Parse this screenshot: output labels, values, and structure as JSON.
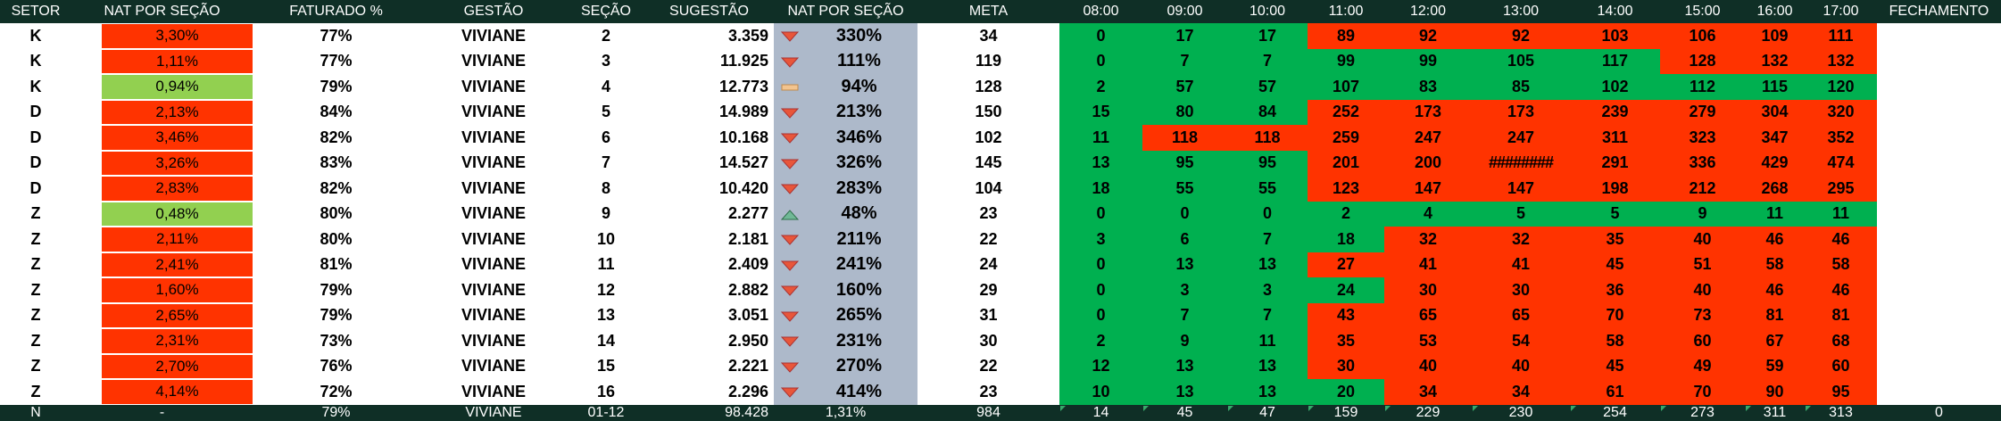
{
  "headers": [
    "SETOR",
    "NAT POR SEÇÃO",
    "FATURADO %",
    "GESTÃO",
    "SEÇÃO",
    "SUGESTÃO",
    "NAT POR SEÇÃO",
    "META",
    "08:00",
    "09:00",
    "10:00",
    "11:00",
    "12:00",
    "13:00",
    "14:00",
    "15:00",
    "16:00",
    "17:00",
    "FECHAMENTO"
  ],
  "colors": {
    "header_bg": "#0f2f26",
    "red": "#ff3300",
    "green": "#00b050",
    "light_green": "#92d050",
    "blue_gray": "#adb9ca",
    "icon_down": "#e8563a",
    "icon_up": "#70b896",
    "icon_flat": "#f2c48f"
  },
  "rows": [
    {
      "setor": "K",
      "nat": "3,30%",
      "nat_color": "red",
      "fat": "77%",
      "gestao": "VIVIANE",
      "secao": "2",
      "sug": "3.359",
      "icon": "down",
      "pct": "330%",
      "meta": "34",
      "hours": [
        "0",
        "17",
        "17",
        "89",
        "92",
        "92",
        "103",
        "106",
        "109",
        "111"
      ],
      "hcolors": [
        "g",
        "g",
        "g",
        "r",
        "r",
        "r",
        "r",
        "r",
        "r",
        "r"
      ]
    },
    {
      "setor": "K",
      "nat": "1,11%",
      "nat_color": "red",
      "fat": "77%",
      "gestao": "VIVIANE",
      "secao": "3",
      "sug": "11.925",
      "icon": "down",
      "pct": "111%",
      "meta": "119",
      "hours": [
        "0",
        "7",
        "7",
        "99",
        "99",
        "105",
        "117",
        "128",
        "132",
        "132"
      ],
      "hcolors": [
        "g",
        "g",
        "g",
        "g",
        "g",
        "g",
        "g",
        "r",
        "r",
        "r"
      ]
    },
    {
      "setor": "K",
      "nat": "0,94%",
      "nat_color": "lgn",
      "fat": "79%",
      "gestao": "VIVIANE",
      "secao": "4",
      "sug": "12.773",
      "icon": "flat",
      "pct": "94%",
      "meta": "128",
      "hours": [
        "2",
        "57",
        "57",
        "107",
        "83",
        "85",
        "102",
        "112",
        "115",
        "120"
      ],
      "hcolors": [
        "g",
        "g",
        "g",
        "g",
        "g",
        "g",
        "g",
        "g",
        "g",
        "g"
      ]
    },
    {
      "setor": "D",
      "nat": "2,13%",
      "nat_color": "red",
      "fat": "84%",
      "gestao": "VIVIANE",
      "secao": "5",
      "sug": "14.989",
      "icon": "down",
      "pct": "213%",
      "meta": "150",
      "hours": [
        "15",
        "80",
        "84",
        "252",
        "173",
        "173",
        "239",
        "279",
        "304",
        "320"
      ],
      "hcolors": [
        "g",
        "g",
        "g",
        "r",
        "r",
        "r",
        "r",
        "r",
        "r",
        "r"
      ]
    },
    {
      "setor": "D",
      "nat": "3,46%",
      "nat_color": "red",
      "fat": "82%",
      "gestao": "VIVIANE",
      "secao": "6",
      "sug": "10.168",
      "icon": "down",
      "pct": "346%",
      "meta": "102",
      "hours": [
        "11",
        "118",
        "118",
        "259",
        "247",
        "247",
        "311",
        "323",
        "347",
        "352"
      ],
      "hcolors": [
        "g",
        "r",
        "r",
        "r",
        "r",
        "r",
        "r",
        "r",
        "r",
        "r"
      ]
    },
    {
      "setor": "D",
      "nat": "3,26%",
      "nat_color": "red",
      "fat": "83%",
      "gestao": "VIVIANE",
      "secao": "7",
      "sug": "14.527",
      "icon": "down",
      "pct": "326%",
      "meta": "145",
      "hours": [
        "13",
        "95",
        "95",
        "201",
        "200",
        "########",
        "291",
        "336",
        "429",
        "474"
      ],
      "hcolors": [
        "g",
        "g",
        "g",
        "r",
        "r",
        "r",
        "r",
        "r",
        "r",
        "r"
      ]
    },
    {
      "setor": "D",
      "nat": "2,83%",
      "nat_color": "red",
      "fat": "82%",
      "gestao": "VIVIANE",
      "secao": "8",
      "sug": "10.420",
      "icon": "down",
      "pct": "283%",
      "meta": "104",
      "hours": [
        "18",
        "55",
        "55",
        "123",
        "147",
        "147",
        "198",
        "212",
        "268",
        "295"
      ],
      "hcolors": [
        "g",
        "g",
        "g",
        "r",
        "r",
        "r",
        "r",
        "r",
        "r",
        "r"
      ]
    },
    {
      "setor": "Z",
      "nat": "0,48%",
      "nat_color": "lgn",
      "fat": "80%",
      "gestao": "VIVIANE",
      "secao": "9",
      "sug": "2.277",
      "icon": "up",
      "pct": "48%",
      "meta": "23",
      "hours": [
        "0",
        "0",
        "0",
        "2",
        "4",
        "5",
        "5",
        "9",
        "11",
        "11"
      ],
      "hcolors": [
        "g",
        "g",
        "g",
        "g",
        "g",
        "g",
        "g",
        "g",
        "g",
        "g"
      ]
    },
    {
      "setor": "Z",
      "nat": "2,11%",
      "nat_color": "red",
      "fat": "80%",
      "gestao": "VIVIANE",
      "secao": "10",
      "sug": "2.181",
      "icon": "down",
      "pct": "211%",
      "meta": "22",
      "hours": [
        "3",
        "6",
        "7",
        "18",
        "32",
        "32",
        "35",
        "40",
        "46",
        "46"
      ],
      "hcolors": [
        "g",
        "g",
        "g",
        "g",
        "r",
        "r",
        "r",
        "r",
        "r",
        "r"
      ]
    },
    {
      "setor": "Z",
      "nat": "2,41%",
      "nat_color": "red",
      "fat": "81%",
      "gestao": "VIVIANE",
      "secao": "11",
      "sug": "2.409",
      "icon": "down",
      "pct": "241%",
      "meta": "24",
      "hours": [
        "0",
        "13",
        "13",
        "27",
        "41",
        "41",
        "45",
        "51",
        "58",
        "58"
      ],
      "hcolors": [
        "g",
        "g",
        "g",
        "r",
        "r",
        "r",
        "r",
        "r",
        "r",
        "r"
      ]
    },
    {
      "setor": "Z",
      "nat": "1,60%",
      "nat_color": "red",
      "fat": "79%",
      "gestao": "VIVIANE",
      "secao": "12",
      "sug": "2.882",
      "icon": "down",
      "pct": "160%",
      "meta": "29",
      "hours": [
        "0",
        "3",
        "3",
        "24",
        "30",
        "30",
        "36",
        "40",
        "46",
        "46"
      ],
      "hcolors": [
        "g",
        "g",
        "g",
        "g",
        "r",
        "r",
        "r",
        "r",
        "r",
        "r"
      ]
    },
    {
      "setor": "Z",
      "nat": "2,65%",
      "nat_color": "red",
      "fat": "79%",
      "gestao": "VIVIANE",
      "secao": "13",
      "sug": "3.051",
      "icon": "down",
      "pct": "265%",
      "meta": "31",
      "hours": [
        "0",
        "7",
        "7",
        "43",
        "65",
        "65",
        "70",
        "73",
        "81",
        "81"
      ],
      "hcolors": [
        "g",
        "g",
        "g",
        "r",
        "r",
        "r",
        "r",
        "r",
        "r",
        "r"
      ]
    },
    {
      "setor": "Z",
      "nat": "2,31%",
      "nat_color": "red",
      "fat": "73%",
      "gestao": "VIVIANE",
      "secao": "14",
      "sug": "2.950",
      "icon": "down",
      "pct": "231%",
      "meta": "30",
      "hours": [
        "2",
        "9",
        "11",
        "35",
        "53",
        "54",
        "58",
        "60",
        "67",
        "68"
      ],
      "hcolors": [
        "g",
        "g",
        "g",
        "r",
        "r",
        "r",
        "r",
        "r",
        "r",
        "r"
      ]
    },
    {
      "setor": "Z",
      "nat": "2,70%",
      "nat_color": "red",
      "fat": "76%",
      "gestao": "VIVIANE",
      "secao": "15",
      "sug": "2.221",
      "icon": "down",
      "pct": "270%",
      "meta": "22",
      "hours": [
        "12",
        "13",
        "13",
        "30",
        "40",
        "40",
        "45",
        "49",
        "59",
        "60"
      ],
      "hcolors": [
        "g",
        "g",
        "g",
        "r",
        "r",
        "r",
        "r",
        "r",
        "r",
        "r"
      ]
    },
    {
      "setor": "Z",
      "nat": "4,14%",
      "nat_color": "red",
      "fat": "72%",
      "gestao": "VIVIANE",
      "secao": "16",
      "sug": "2.296",
      "icon": "down",
      "pct": "414%",
      "meta": "23",
      "hours": [
        "10",
        "13",
        "13",
        "20",
        "34",
        "34",
        "61",
        "70",
        "90",
        "95"
      ],
      "hcolors": [
        "g",
        "g",
        "g",
        "g",
        "r",
        "r",
        "r",
        "r",
        "r",
        "r"
      ]
    }
  ],
  "total": {
    "setor": "N",
    "nat": "-",
    "fat": "79%",
    "gestao": "VIVIANE",
    "secao": "01-12",
    "sug": "98.428",
    "pct": "1,31%",
    "meta": "984",
    "hours": [
      "14",
      "45",
      "47",
      "159",
      "229",
      "230",
      "254",
      "273",
      "311",
      "313"
    ],
    "fechamento": "0"
  }
}
